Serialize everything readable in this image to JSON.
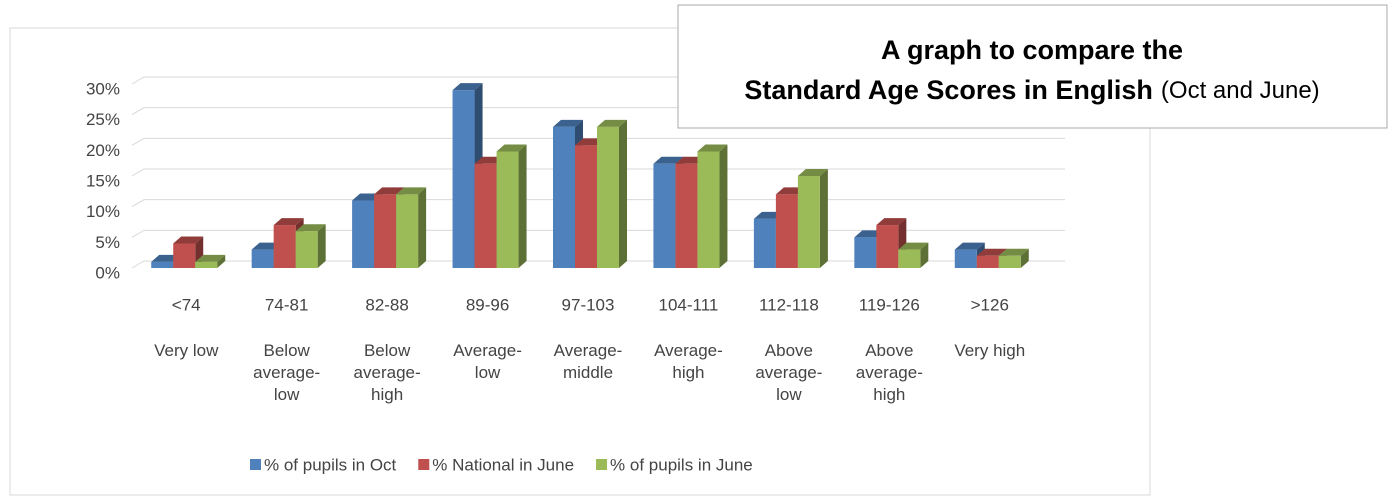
{
  "chart_data": {
    "type": "bar3d",
    "title": "A graph to compare the Standard Age Scores in English",
    "subtitle": "(Oct and June)",
    "categories": [
      "<74",
      "74-81",
      "82-88",
      "89-96",
      "97-103",
      "104-111",
      "112-118",
      "119-126",
      ">126"
    ],
    "category_descriptions": [
      "Very low",
      "Below average-low",
      "Below average-high",
      "Average-low",
      "Average-middle",
      "Average-high",
      "Above average-low",
      "Above average-high",
      "Very high"
    ],
    "series": [
      {
        "name": "% of pupils in Oct",
        "color": "#4f81bd",
        "values": [
          1,
          3,
          11,
          29,
          23,
          17,
          8,
          5,
          3
        ]
      },
      {
        "name": "% National in June",
        "color": "#c0504d",
        "values": [
          4,
          7,
          12,
          17,
          20,
          17,
          12,
          7,
          2
        ]
      },
      {
        "name": "% of pupils in June",
        "color": "#9bbb59",
        "values": [
          1,
          6,
          12,
          19,
          23,
          19,
          15,
          3,
          2
        ]
      }
    ],
    "ylim": [
      0,
      30
    ],
    "yticks": [
      {
        "value": 0,
        "label": "0%"
      },
      {
        "value": 5,
        "label": "5%"
      },
      {
        "value": 10,
        "label": "10%"
      },
      {
        "value": 15,
        "label": "15%"
      },
      {
        "value": 20,
        "label": "20%"
      },
      {
        "value": 25,
        "label": "25%"
      },
      {
        "value": 30,
        "label": "30%"
      }
    ],
    "grid": true,
    "legend": "bottom"
  }
}
